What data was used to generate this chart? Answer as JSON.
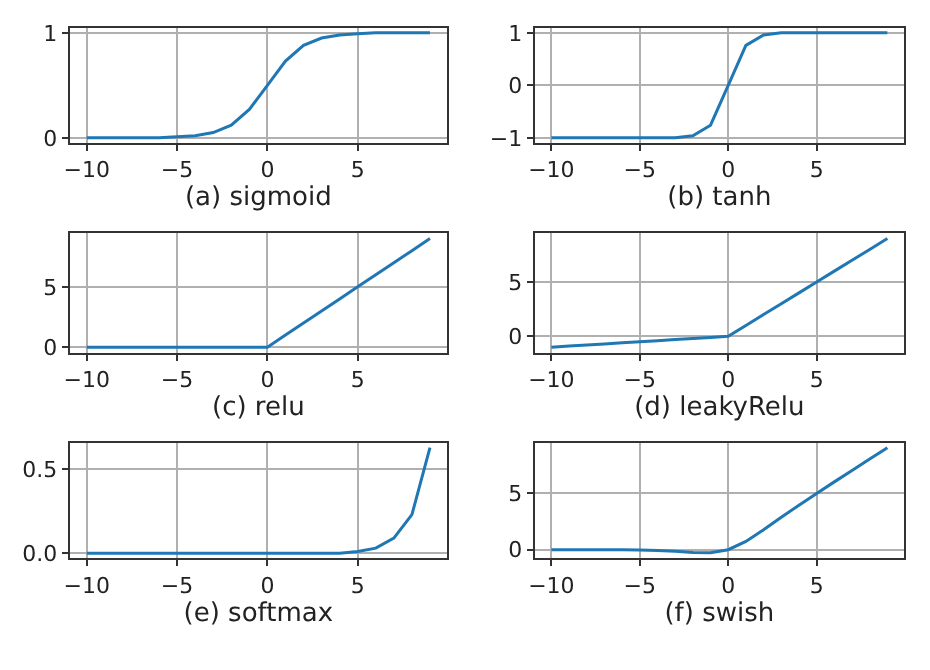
{
  "chart_data": [
    {
      "type": "line",
      "xlabel": "(a) sigmoid",
      "x": [
        -10,
        -9,
        -8,
        -7,
        -6,
        -5,
        -4,
        -3,
        -2,
        -1,
        0,
        1,
        2,
        3,
        4,
        5,
        6,
        7,
        8,
        9
      ],
      "series": [
        {
          "color": "#1f77b4",
          "values": [
            0,
            0,
            0,
            0,
            0,
            0.01,
            0.02,
            0.05,
            0.12,
            0.27,
            0.5,
            0.73,
            0.88,
            0.95,
            0.98,
            0.99,
            1,
            1,
            1,
            1
          ]
        }
      ],
      "xlim": [
        -10.95,
        9.95
      ],
      "xticks": [
        -10,
        -5,
        0,
        5
      ],
      "ylim": [
        -0.05,
        1.05
      ],
      "yticks": [
        0,
        1
      ],
      "grid": true,
      "marker": "none",
      "line_style": "solid"
    },
    {
      "type": "line",
      "xlabel": "(b) tanh",
      "x": [
        -10,
        -9,
        -8,
        -7,
        -6,
        -5,
        -4,
        -3,
        -2,
        -1,
        0,
        1,
        2,
        3,
        4,
        5,
        6,
        7,
        8,
        9
      ],
      "series": [
        {
          "color": "#1f77b4",
          "values": [
            -1,
            -1,
            -1,
            -1,
            -1,
            -1,
            -1,
            -1,
            -0.96,
            -0.76,
            0,
            0.76,
            0.96,
            1,
            1,
            1,
            1,
            1,
            1,
            1
          ]
        }
      ],
      "xlim": [
        -10.95,
        9.95
      ],
      "xticks": [
        -10,
        -5,
        0,
        5
      ],
      "ylim": [
        -1.1,
        1.1
      ],
      "yticks": [
        -1,
        0,
        1
      ],
      "grid": true,
      "marker": "none",
      "line_style": "solid"
    },
    {
      "type": "line",
      "xlabel": "(c) relu",
      "x": [
        -10,
        -9,
        -8,
        -7,
        -6,
        -5,
        -4,
        -3,
        -2,
        -1,
        0,
        1,
        2,
        3,
        4,
        5,
        6,
        7,
        8,
        9
      ],
      "series": [
        {
          "color": "#1f77b4",
          "values": [
            0,
            0,
            0,
            0,
            0,
            0,
            0,
            0,
            0,
            0,
            0,
            1,
            2,
            3,
            4,
            5,
            6,
            7,
            8,
            9
          ]
        }
      ],
      "xlim": [
        -10.95,
        9.95
      ],
      "xticks": [
        -10,
        -5,
        0,
        5
      ],
      "ylim": [
        -0.45,
        9.45
      ],
      "yticks": [
        0,
        5
      ],
      "grid": true,
      "marker": "none",
      "line_style": "solid"
    },
    {
      "type": "line",
      "xlabel": "(d) leakyRelu",
      "x": [
        -10,
        -9,
        -8,
        -7,
        -6,
        -5,
        -4,
        -3,
        -2,
        -1,
        0,
        1,
        2,
        3,
        4,
        5,
        6,
        7,
        8,
        9
      ],
      "series": [
        {
          "color": "#1f77b4",
          "values": [
            -1,
            -0.9,
            -0.8,
            -0.7,
            -0.6,
            -0.5,
            -0.4,
            -0.3,
            -0.2,
            -0.1,
            0,
            1,
            2,
            3,
            4,
            5,
            6,
            7,
            8,
            9
          ]
        }
      ],
      "xlim": [
        -10.95,
        9.95
      ],
      "xticks": [
        -10,
        -5,
        0,
        5
      ],
      "ylim": [
        -1.5,
        9.5
      ],
      "yticks": [
        0,
        5
      ],
      "grid": true,
      "marker": "none",
      "line_style": "solid"
    },
    {
      "type": "line",
      "xlabel": "(e) softmax",
      "x": [
        -10,
        -9,
        -8,
        -7,
        -6,
        -5,
        -4,
        -3,
        -2,
        -1,
        0,
        1,
        2,
        3,
        4,
        5,
        6,
        7,
        8,
        9
      ],
      "series": [
        {
          "color": "#1f77b4",
          "values": [
            0,
            0,
            0,
            0,
            0,
            0,
            0,
            0,
            0,
            0,
            0,
            0,
            0,
            0,
            0,
            0.01,
            0.03,
            0.09,
            0.23,
            0.63
          ]
        }
      ],
      "xlim": [
        -10.95,
        9.95
      ],
      "xticks": [
        -10,
        -5,
        0,
        5
      ],
      "ylim": [
        -0.03,
        0.66
      ],
      "yticks": [
        {
          "value": 0,
          "label": "0.0"
        },
        0.5
      ],
      "grid": true,
      "marker": "none",
      "line_style": "solid"
    },
    {
      "type": "line",
      "xlabel": "(f) swish",
      "x": [
        -10,
        -9,
        -8,
        -7,
        -6,
        -5,
        -4,
        -3,
        -2,
        -1,
        0,
        1,
        2,
        3,
        4,
        5,
        6,
        7,
        8,
        9
      ],
      "series": [
        {
          "color": "#1f77b4",
          "values": [
            0,
            0,
            0,
            -0.01,
            -0.01,
            -0.03,
            -0.07,
            -0.14,
            -0.24,
            -0.27,
            0,
            0.73,
            1.76,
            2.86,
            3.93,
            4.97,
            5.99,
            6.99,
            8,
            9
          ]
        }
      ],
      "xlim": [
        -10.95,
        9.95
      ],
      "xticks": [
        -10,
        -5,
        0,
        5
      ],
      "ylim": [
        -0.75,
        9.45
      ],
      "yticks": [
        0,
        5
      ],
      "grid": true,
      "marker": "none",
      "line_style": "solid"
    }
  ]
}
